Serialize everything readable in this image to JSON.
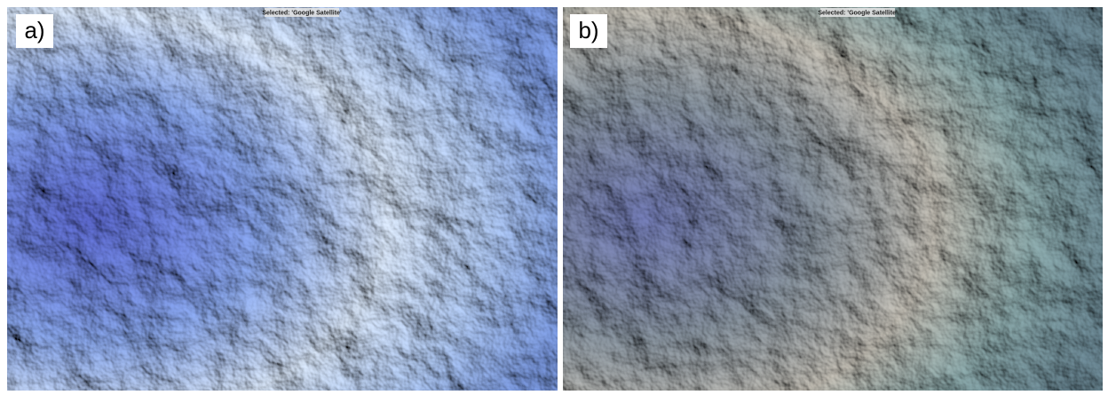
{
  "panels": [
    {
      "label": "a)",
      "status": "Selected: 'Google Satellite'"
    },
    {
      "label": "b)",
      "status": "Selected: 'Google Satellite'"
    }
  ]
}
